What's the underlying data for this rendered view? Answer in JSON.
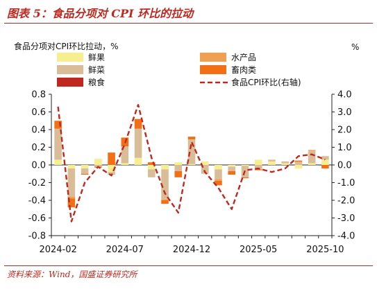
{
  "header": {
    "title": "图表 5：食品分项对 CPI 环比的拉动"
  },
  "footer": {
    "source": "资料来源：Wind，国盛证券研究所"
  },
  "colors": {
    "fresh_fruit": "#f7ee90",
    "fresh_veg": "#d9bc98",
    "grain": "#c0281f",
    "aquatic": "#f0a050",
    "meat": "#f36f16",
    "line": "#c0281f",
    "brand": "#c0281f"
  },
  "chart_data": {
    "type": "bar",
    "stacked": true,
    "ylabel": "食品分项对CPI环比拉动，%",
    "y2label": "%",
    "ylim": [
      -0.8,
      0.8
    ],
    "y2lim": [
      -4.0,
      4.0
    ],
    "yticks": [
      "0.8",
      "0.6",
      "0.4",
      "0.2",
      "0.0",
      "-0.2",
      "-0.4",
      "-0.6",
      "-0.8"
    ],
    "y2ticks": [
      "4.0",
      "3.0",
      "2.0",
      "1.0",
      "0.0",
      "-1.0",
      "-2.0",
      "-3.0",
      "-4.0"
    ],
    "xtick_labels": [
      {
        "index": 0,
        "label": "2024-02"
      },
      {
        "index": 5,
        "label": "2024-07"
      },
      {
        "index": 10,
        "label": "2024-12"
      },
      {
        "index": 15,
        "label": "2025-05"
      },
      {
        "index": 20,
        "label": "2025-10"
      }
    ],
    "categories": [
      "2024-02",
      "2024-03",
      "2024-04",
      "2024-05",
      "2024-06",
      "2024-07",
      "2024-08",
      "2024-09",
      "2024-10",
      "2024-11",
      "2024-12",
      "2025-01",
      "2025-02",
      "2025-03",
      "2025-04",
      "2025-05",
      "2025-06",
      "2025-07",
      "2025-08",
      "2025-09",
      "2025-10"
    ],
    "series": [
      {
        "name": "鲜果",
        "kind": "bar",
        "color_key": "fresh_fruit",
        "values": [
          0.06,
          -0.04,
          -0.04,
          0.07,
          -0.08,
          0.02,
          0.08,
          -0.05,
          -0.05,
          0.03,
          0.01,
          0.04,
          -0.05,
          -0.02,
          -0.01,
          0.06,
          0.04,
          0.02,
          -0.04,
          0.02,
          0.06
        ]
      },
      {
        "name": "鲜菜",
        "kind": "bar",
        "color_key": "fresh_veg",
        "values": [
          0.35,
          -0.32,
          -0.06,
          -0.02,
          -0.03,
          0.19,
          0.33,
          -0.09,
          -0.34,
          -0.07,
          0.28,
          -0.1,
          -0.11,
          -0.05,
          -0.13,
          -0.05,
          0.02,
          0.02,
          0.03,
          0.14,
          0.04
        ]
      },
      {
        "name": "粮食",
        "kind": "bar",
        "color_key": "grain",
        "values": [
          0.0,
          0.0,
          0.0,
          0.0,
          0.0,
          0.0,
          0.0,
          0.0,
          0.0,
          0.0,
          0.0,
          0.0,
          0.0,
          0.0,
          0.0,
          0.0,
          0.0,
          0.0,
          0.0,
          0.0,
          0.0
        ]
      },
      {
        "name": "水产品",
        "kind": "bar",
        "color_key": "aquatic",
        "values": [
          0.0,
          -0.02,
          0.0,
          0.0,
          0.0,
          0.0,
          0.0,
          0.0,
          -0.01,
          0.0,
          0.0,
          0.0,
          -0.02,
          0.0,
          0.0,
          0.0,
          0.0,
          0.0,
          0.01,
          0.01,
          0.0
        ]
      },
      {
        "name": "畜肉类",
        "kind": "bar",
        "color_key": "meat",
        "values": [
          0.09,
          -0.1,
          -0.01,
          -0.01,
          0.14,
          0.1,
          0.11,
          0.03,
          -0.04,
          -0.07,
          0.03,
          0.0,
          -0.05,
          -0.04,
          -0.01,
          -0.01,
          0.0,
          0.0,
          0.01,
          0.0,
          -0.04
        ]
      },
      {
        "name": "食品CPI环比(右轴)",
        "kind": "line",
        "axis": "right",
        "color_key": "line",
        "values": [
          3.3,
          -3.2,
          -1.0,
          -0.1,
          -0.6,
          1.2,
          3.4,
          0.4,
          -1.6,
          -2.7,
          1.3,
          -0.4,
          -1.3,
          -2.5,
          -0.3,
          -0.2,
          -0.4,
          -0.2,
          0.5,
          0.6,
          0.3
        ]
      }
    ]
  }
}
